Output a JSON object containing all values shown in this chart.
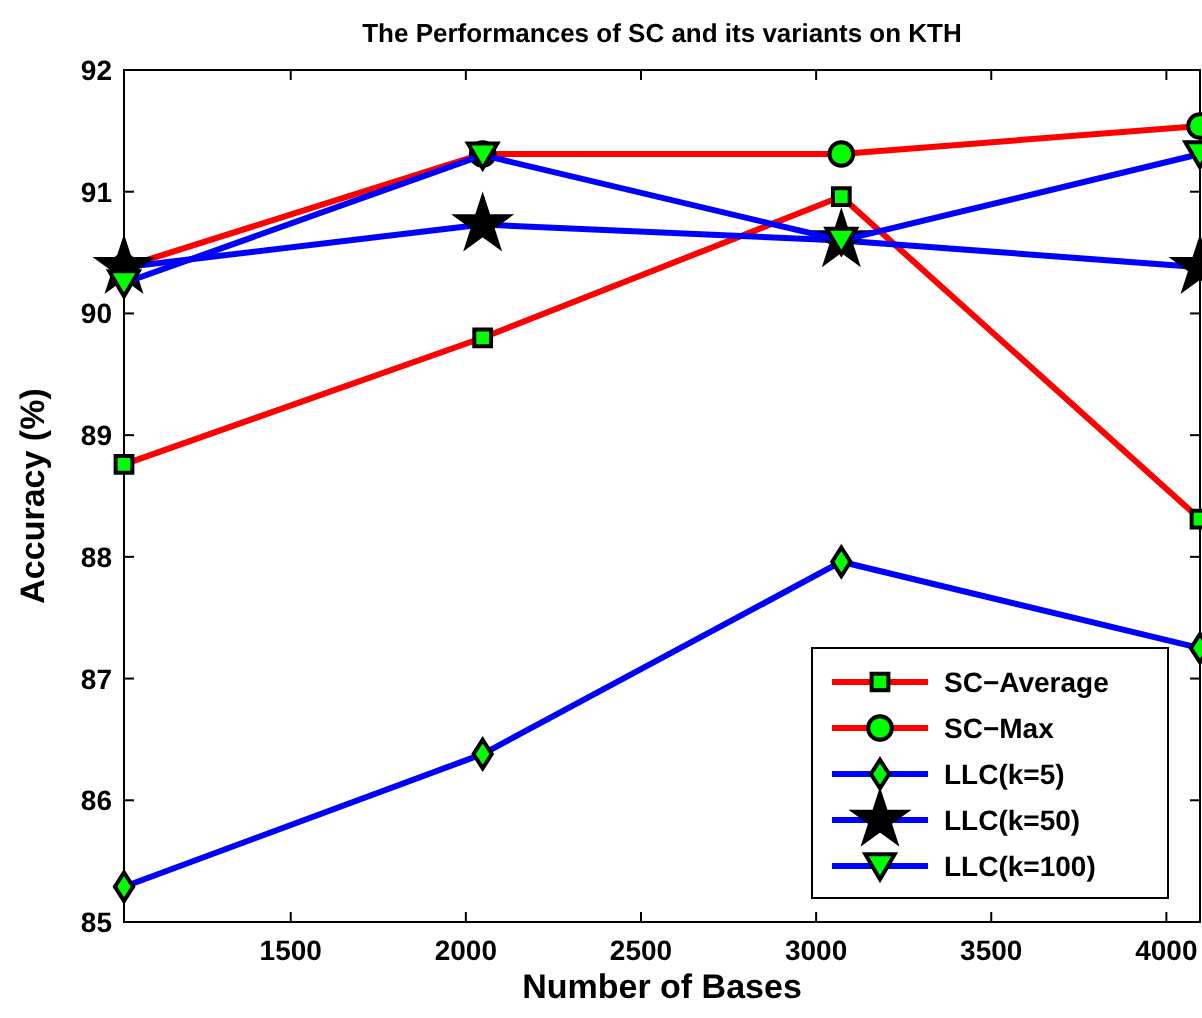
{
  "chart_data": {
    "type": "line",
    "title": "The Performances of SC and its variants on KTH",
    "xlabel": "Number of Bases",
    "ylabel": "Accuracy (%)",
    "x": [
      1024,
      2048,
      3072,
      4096
    ],
    "series": [
      {
        "name": "SC−Average",
        "color": "#ff0000",
        "marker": "square",
        "values": [
          88.76,
          89.8,
          90.96,
          88.31
        ]
      },
      {
        "name": "SC−Max",
        "color": "#ff0000",
        "marker": "circle",
        "values": [
          90.38,
          91.31,
          91.31,
          91.54
        ]
      },
      {
        "name": "LLC(k=5)",
        "color": "#0000ff",
        "marker": "diamond",
        "values": [
          85.29,
          86.38,
          87.96,
          87.25
        ]
      },
      {
        "name": "LLC(k=50)",
        "color": "#0000ff",
        "marker": "star",
        "values": [
          90.38,
          90.73,
          90.6,
          90.38
        ]
      },
      {
        "name": "LLC(k=100)",
        "color": "#0000ff",
        "marker": "triangle",
        "values": [
          90.25,
          91.3,
          90.6,
          91.31
        ]
      }
    ],
    "xlim": [
      1024,
      4096
    ],
    "xticks": [
      1500,
      2000,
      2500,
      3000,
      3500,
      4000
    ],
    "ylim": [
      85,
      92
    ],
    "yticks": [
      85,
      86,
      87,
      88,
      89,
      90,
      91,
      92
    ],
    "grid": false,
    "legend": "bottom right",
    "line_style": "solid"
  }
}
